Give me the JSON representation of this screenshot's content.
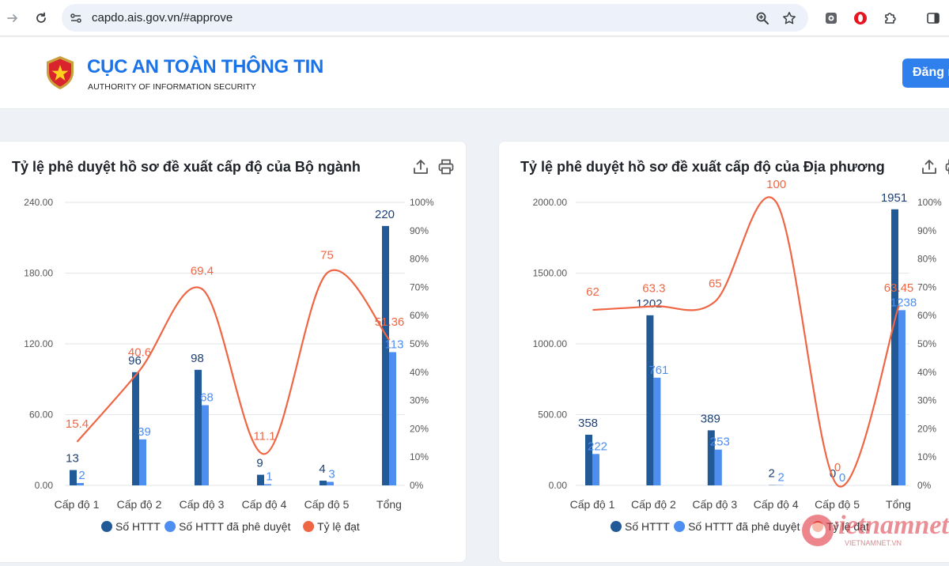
{
  "browser": {
    "url": "capdo.ais.gov.vn/#approve",
    "icons": [
      "forward-arrow-icon",
      "reload-icon",
      "site-settings-icon",
      "zoom-icon",
      "bookmark-star-icon",
      "extension-capture-icon",
      "opera-icon",
      "puzzle-extensions-icon",
      "sidepanel-icon"
    ]
  },
  "header": {
    "title": "CỤC AN TOÀN THÔNG TIN",
    "subtitle": "AUTHORITY OF INFORMATION SECURITY",
    "login_label": "Đăng nhập",
    "logo_icon": "shield-star-icon"
  },
  "colors": {
    "series1": "#225a98",
    "series2": "#4d8ef0",
    "rate": "#ef6644",
    "brand": "#1a73e8"
  },
  "cards": [
    {
      "title": "Tỷ lệ phê duyệt hồ sơ đề xuất cấp độ của Bộ ngành",
      "icons": [
        "export-icon",
        "print-icon"
      ]
    },
    {
      "title": "Tỷ lệ phê duyệt hồ sơ đề xuất cấp độ của Địa phương",
      "icons": [
        "export-icon",
        "print-icon"
      ]
    }
  ],
  "chart_data": [
    {
      "type": "bar",
      "categories": [
        "Cấp độ 1",
        "Cấp độ 2",
        "Cấp độ 3",
        "Cấp độ 4",
        "Cấp độ 5",
        "Tổng"
      ],
      "series": [
        {
          "name": "Số HTTT",
          "values": [
            13,
            96,
            98,
            9,
            4,
            220
          ],
          "labels": [
            "13",
            "96",
            "98",
            "9",
            "4",
            "220"
          ]
        },
        {
          "name": "Số HTTT đã phê duyệt",
          "values": [
            2,
            39,
            68,
            1,
            3,
            113
          ],
          "labels": [
            "2",
            "39",
            "68",
            "1",
            "3",
            "113"
          ]
        },
        {
          "name": "Tỷ lệ đạt",
          "type": "line",
          "axis": "right",
          "values": [
            15.4,
            40.6,
            69.4,
            11.1,
            75,
            51.36
          ],
          "labels": [
            "15.4",
            "40.6",
            "69.4",
            "11.1",
            "75",
            "51.36"
          ]
        }
      ],
      "y_ticks": [
        "0.00",
        "60.00",
        "120.00",
        "180.00",
        "240.00"
      ],
      "ylim": [
        0,
        240
      ],
      "y2_ticks": [
        "0%",
        "10%",
        "20%",
        "30%",
        "40%",
        "50%",
        "60%",
        "70%",
        "80%",
        "90%",
        "100%"
      ],
      "y2lim": [
        0,
        100
      ],
      "grid": true,
      "legend": "bottom"
    },
    {
      "type": "bar",
      "categories": [
        "Cấp độ 1",
        "Cấp độ 2",
        "Cấp độ 3",
        "Cấp độ 4",
        "Cấp độ 5",
        "Tổng"
      ],
      "series": [
        {
          "name": "Số HTTT",
          "values": [
            358,
            1202,
            389,
            2,
            0,
            1951
          ],
          "labels": [
            "358",
            "1202",
            "389",
            "2",
            "0",
            "1951"
          ]
        },
        {
          "name": "Số HTTT đã phê duyệt",
          "values": [
            222,
            761,
            253,
            2,
            0,
            1238
          ],
          "labels": [
            "222",
            "761",
            "253",
            "2",
            "0",
            "1238"
          ]
        },
        {
          "name": "Tỷ lệ đạt",
          "type": "line",
          "axis": "right",
          "values": [
            62,
            63.3,
            65,
            100,
            0,
            63.45
          ],
          "labels": [
            "62",
            "63.3",
            "65",
            "100",
            "0",
            "63.45"
          ]
        }
      ],
      "y_ticks": [
        "0.00",
        "500.00",
        "1000.00",
        "1500.00",
        "2000.00"
      ],
      "ylim": [
        0,
        2000
      ],
      "y2_ticks": [
        "0%",
        "10%",
        "20%",
        "30%",
        "40%",
        "50%",
        "60%",
        "70%",
        "80%",
        "90%",
        "100%"
      ],
      "y2lim": [
        0,
        100
      ],
      "grid": true,
      "legend": "bottom"
    }
  ],
  "watermark": {
    "text": "vietnamnet",
    "sub": "VIETNAMNET.VN"
  }
}
